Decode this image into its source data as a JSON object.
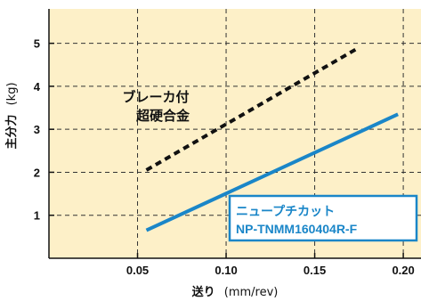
{
  "chart_data": {
    "type": "line",
    "xlabel_main": "送り",
    "xlabel_unit": "(mm/rev)",
    "ylabel_main": "主分力",
    "ylabel_unit": "(kg)",
    "xlim": [
      0.0,
      0.21
    ],
    "ylim": [
      0.0,
      5.8
    ],
    "x_ticks": [
      "0.05",
      "0.10",
      "0.15",
      "0.20"
    ],
    "y_ticks": [
      "1",
      "2",
      "3",
      "4",
      "5"
    ],
    "grid": true,
    "background_color": "#fdf0c8",
    "series": [
      {
        "name": "ブレーカ付 超硬合金",
        "label_lines": [
          "ブレーカ付",
          "超硬合金"
        ],
        "style": "dashed",
        "color": "#111111",
        "x": [
          0.055,
          0.175
        ],
        "y": [
          2.05,
          4.9
        ]
      },
      {
        "name": "ニュープチカット NP-TNMM160404R-F",
        "label_lines": [
          "ニュープチカット",
          "NP-TNMM160404R-F"
        ],
        "style": "solid",
        "color": "#1a86c8",
        "x": [
          0.055,
          0.197
        ],
        "y": [
          0.65,
          3.35
        ]
      }
    ]
  }
}
